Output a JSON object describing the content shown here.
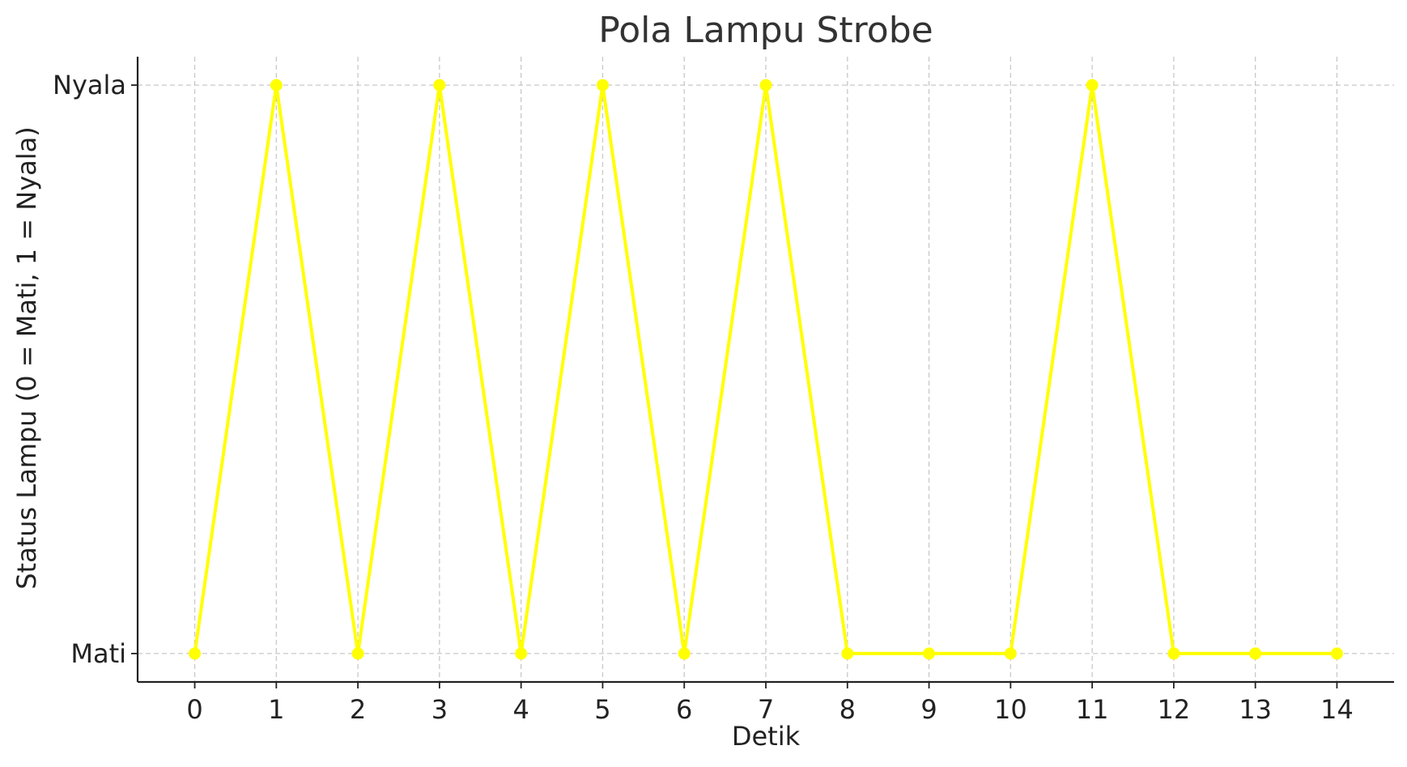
{
  "chart_data": {
    "type": "line",
    "title": "Pola Lampu Strobe",
    "xlabel": "Detik",
    "ylabel": "Status Lampu (0 = Mati, 1 = Nyala)",
    "x": [
      0,
      1,
      2,
      3,
      4,
      5,
      6,
      7,
      8,
      9,
      10,
      11,
      12,
      13,
      14
    ],
    "series": [
      {
        "values": [
          0,
          1,
          0,
          1,
          0,
          1,
          0,
          1,
          0,
          0,
          0,
          1,
          0,
          0,
          0
        ],
        "color": "#ffff00",
        "marker": "circle"
      }
    ],
    "x_ticks": [
      "0",
      "1",
      "2",
      "3",
      "4",
      "5",
      "6",
      "7",
      "8",
      "9",
      "10",
      "11",
      "12",
      "13",
      "14"
    ],
    "y_ticks": [
      {
        "value": 0,
        "label": "Mati"
      },
      {
        "value": 1,
        "label": "Nyala"
      }
    ],
    "xlim": [
      -0.7,
      14.7
    ],
    "ylim": [
      -0.05,
      1.05
    ],
    "grid": true,
    "grid_style": "dashed"
  }
}
